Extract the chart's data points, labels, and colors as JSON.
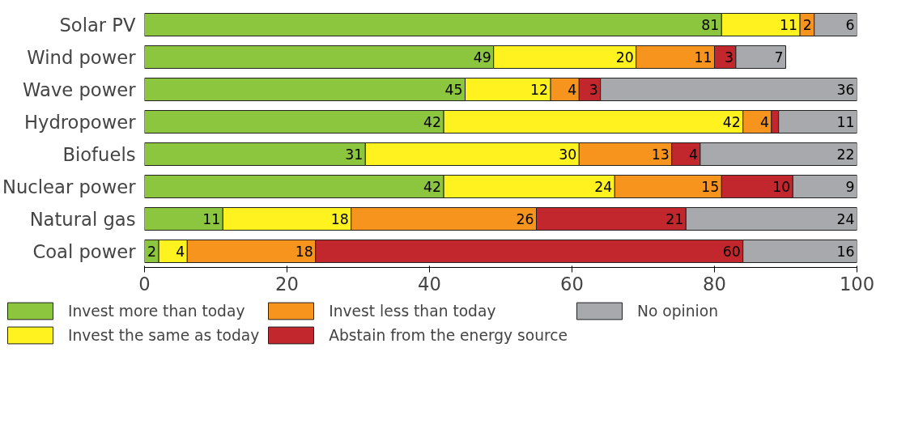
{
  "chart_data": {
    "type": "bar",
    "orientation": "horizontal",
    "stacked": true,
    "categories": [
      "Solar PV",
      "Wind power",
      "Wave power",
      "Hydropower",
      "Biofuels",
      "Nuclear power",
      "Natural gas",
      "Coal power"
    ],
    "series": [
      {
        "name": "Invest more than today",
        "color": "#8cc63f",
        "values": [
          81,
          49,
          45,
          42,
          31,
          42,
          11,
          2
        ],
        "value_labels": [
          "81",
          "49",
          "45",
          "42",
          "31",
          "42",
          "11",
          "2"
        ]
      },
      {
        "name": "Invest the same as today",
        "color": "#fff21f",
        "values": [
          11,
          20,
          12,
          42,
          30,
          24,
          18,
          4
        ],
        "value_labels": [
          "11",
          "20",
          "12",
          "42",
          "30",
          "24",
          "18",
          "4"
        ]
      },
      {
        "name": "Invest less than today",
        "color": "#f7941d",
        "values": [
          2,
          11,
          4,
          4,
          13,
          15,
          26,
          18
        ],
        "value_labels": [
          "2",
          "11",
          "4",
          "4",
          "13",
          "15",
          "26",
          "18"
        ]
      },
      {
        "name": "Abstain from the energy source",
        "color": "#c1272d",
        "values": [
          null,
          3,
          3,
          1,
          4,
          10,
          21,
          60
        ],
        "value_labels": [
          null,
          "3",
          "3",
          null,
          "4",
          "10",
          "21",
          "60"
        ]
      },
      {
        "name": "No opinion",
        "color": "#a7a9ac",
        "values": [
          6,
          7,
          36,
          11,
          22,
          9,
          24,
          16
        ],
        "value_labels": [
          "6",
          "7",
          "36",
          "11",
          "22",
          "9",
          "24",
          "16"
        ]
      }
    ],
    "xlim": [
      0,
      100
    ],
    "xticks": [
      0,
      20,
      40,
      60,
      80,
      100
    ],
    "grid": false,
    "legend": "bottom"
  }
}
